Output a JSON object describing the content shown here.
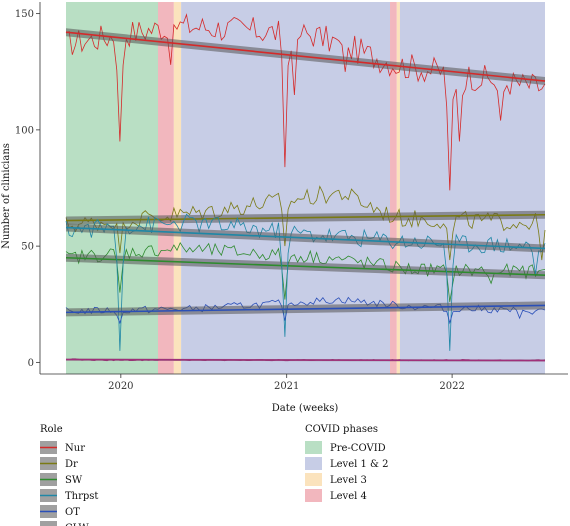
{
  "chart_data": {
    "type": "line",
    "xlabel": "Date (weeks)",
    "ylabel": "Number of clinicians",
    "x_range": [
      "2019-09-02",
      "2022-07-25"
    ],
    "x_ticks": [
      {
        "date": "2020-01-01",
        "label": "2020"
      },
      {
        "date": "2021-01-01",
        "label": "2021"
      },
      {
        "date": "2022-01-01",
        "label": "2022"
      }
    ],
    "ylim": [
      -5,
      155
    ],
    "y_ticks": [
      0,
      50,
      100,
      150
    ],
    "grid": false,
    "legend_position": "bottom",
    "phase_legend_title": "COVID phases",
    "phases": [
      {
        "name": "Pre-COVID",
        "start": "2019-09-02",
        "end": "2020-03-23",
        "color": "#b9dfc4"
      },
      {
        "name": "Level 4",
        "start": "2020-03-23",
        "end": "2020-04-27",
        "color": "#f2b7be"
      },
      {
        "name": "Level 3",
        "start": "2020-04-27",
        "end": "2020-05-13",
        "color": "#fbe3bd"
      },
      {
        "name": "Level 1 & 2",
        "start": "2020-05-13",
        "end": "2021-08-17",
        "color": "#c7cde6"
      },
      {
        "name": "Level 4",
        "start": "2021-08-17",
        "end": "2021-09-01",
        "color": "#f2b7be"
      },
      {
        "name": "Level 3",
        "start": "2021-09-01",
        "end": "2021-09-08",
        "color": "#fbe3bd"
      },
      {
        "name": "Level 1 & 2",
        "start": "2021-09-08",
        "end": "2022-07-25",
        "color": "#c7cde6"
      }
    ],
    "phase_legend": [
      {
        "name": "Pre-COVID",
        "color": "#b9dfc4"
      },
      {
        "name": "Level 1 & 2",
        "color": "#c7cde6"
      },
      {
        "name": "Level 3",
        "color": "#fbe3bd"
      },
      {
        "name": "Level 4",
        "color": "#f2b7be"
      }
    ],
    "role_legend_title": "Role",
    "series": [
      {
        "name": "Nur",
        "color": "#d42a2a",
        "base": 137,
        "amp": 6,
        "trend": [
          142,
          121
        ],
        "dips": [
          {
            "date": "2019-12-30",
            "to": 95
          },
          {
            "date": "2020-04-20",
            "to": 128
          },
          {
            "date": "2020-12-28",
            "to": 84
          },
          {
            "date": "2021-01-18",
            "to": 115
          },
          {
            "date": "2021-05-10",
            "to": 125
          },
          {
            "date": "2021-12-27",
            "to": 74
          },
          {
            "date": "2022-01-17",
            "to": 95
          },
          {
            "date": "2022-04-18",
            "to": 104
          }
        ],
        "phase_levels": [
          {
            "date": "2019-09-02",
            "v": 137
          },
          {
            "date": "2020-05-01",
            "v": 145
          },
          {
            "date": "2021-03-01",
            "v": 141
          },
          {
            "date": "2021-09-01",
            "v": 128
          },
          {
            "date": "2022-07-25",
            "v": 118
          }
        ]
      },
      {
        "name": "Dr",
        "color": "#7a7a14",
        "base": 60,
        "amp": 4,
        "trend": [
          61,
          63.5
        ],
        "dips": [
          {
            "date": "2019-12-30",
            "to": 47
          },
          {
            "date": "2020-12-28",
            "to": 50
          },
          {
            "date": "2021-12-27",
            "to": 44
          },
          {
            "date": "2022-07-18",
            "to": 44
          }
        ],
        "phase_levels": [
          {
            "date": "2019-09-02",
            "v": 59
          },
          {
            "date": "2020-06-01",
            "v": 64
          },
          {
            "date": "2021-05-01",
            "v": 73
          },
          {
            "date": "2021-09-01",
            "v": 62
          },
          {
            "date": "2022-07-25",
            "v": 60
          }
        ]
      },
      {
        "name": "SW",
        "color": "#2e8b2e",
        "base": 44,
        "amp": 3,
        "trend": [
          45,
          37.5
        ],
        "dips": [
          {
            "date": "2019-12-30",
            "to": 30
          },
          {
            "date": "2020-12-28",
            "to": 27
          },
          {
            "date": "2021-12-27",
            "to": 26
          },
          {
            "date": "2022-03-28",
            "to": 34
          }
        ],
        "phase_levels": [
          {
            "date": "2019-09-02",
            "v": 45
          },
          {
            "date": "2020-05-01",
            "v": 49
          },
          {
            "date": "2021-04-01",
            "v": 45
          },
          {
            "date": "2021-10-01",
            "v": 40
          },
          {
            "date": "2022-07-25",
            "v": 39
          }
        ]
      },
      {
        "name": "Thrpst",
        "color": "#1f87a6",
        "base": 57,
        "amp": 4,
        "trend": [
          58,
          49
        ],
        "dips": [
          {
            "date": "2019-12-30",
            "to": 5
          },
          {
            "date": "2020-12-28",
            "to": 11
          },
          {
            "date": "2021-12-27",
            "to": 5
          },
          {
            "date": "2022-07-04",
            "to": 38
          }
        ],
        "phase_levels": [
          {
            "date": "2019-09-02",
            "v": 57
          },
          {
            "date": "2020-06-01",
            "v": 60
          },
          {
            "date": "2021-03-01",
            "v": 55
          },
          {
            "date": "2021-10-01",
            "v": 52
          },
          {
            "date": "2022-07-25",
            "v": 50
          }
        ]
      },
      {
        "name": "OT",
        "color": "#2a4fb8",
        "base": 22,
        "amp": 1.6,
        "trend": [
          21.5,
          24.5
        ],
        "dips": [
          {
            "date": "2019-12-30",
            "to": 17
          },
          {
            "date": "2020-12-28",
            "to": 18
          },
          {
            "date": "2021-12-27",
            "to": 17
          },
          {
            "date": "2022-05-30",
            "to": 19
          }
        ],
        "phase_levels": [
          {
            "date": "2019-09-02",
            "v": 22
          },
          {
            "date": "2020-06-01",
            "v": 23
          },
          {
            "date": "2021-05-01",
            "v": 27
          },
          {
            "date": "2021-10-01",
            "v": 24
          },
          {
            "date": "2022-07-25",
            "v": 22
          }
        ]
      },
      {
        "name": "CLW",
        "color": "#a0307a",
        "base": 1,
        "amp": 0.3,
        "trend": [
          1.2,
          0.8
        ],
        "dips": [],
        "phase_levels": [
          {
            "date": "2019-09-02",
            "v": 1.5
          },
          {
            "date": "2019-10-15",
            "v": 1
          },
          {
            "date": "2022-07-25",
            "v": 1
          }
        ]
      }
    ]
  }
}
